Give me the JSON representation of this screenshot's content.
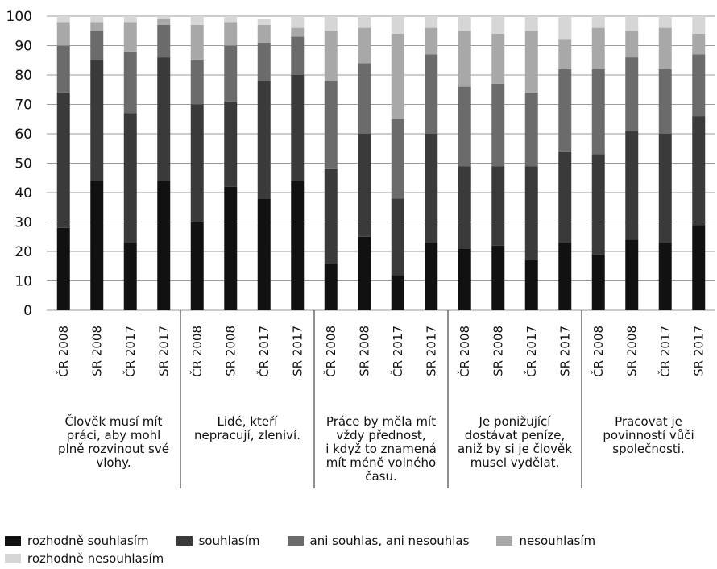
{
  "chart_data": {
    "type": "bar",
    "stacked": true,
    "ylim": [
      0,
      100
    ],
    "yticks": [
      0,
      10,
      20,
      30,
      40,
      50,
      60,
      70,
      80,
      90,
      100
    ],
    "grid": true,
    "legend_position": "bottom",
    "categories": [
      "ČR 2008",
      "SR 2008",
      "ČR 2017",
      "SR 2017",
      "ČR 2008",
      "SR 2008",
      "ČR 2017",
      "SR 2017",
      "ČR 2008",
      "SR 2008",
      "ČR 2017",
      "SR 2017",
      "ČR 2008",
      "SR 2008",
      "ČR 2017",
      "SR 2017",
      "ČR 2008",
      "SR 2008",
      "ČR 2017",
      "SR 2017"
    ],
    "groups": [
      "Člověk musí mít práci, aby mohl plně rozvinout své vlohy.",
      "Lidé, kteří nepracují, zleniví.",
      "Práce by měla mít vždy přednost, i když to znamená mít méně volného času.",
      "Je ponižující dostávat peníze, aniž by si je člověk musel vydělat.",
      "Pracovat je povinností vůči společnosti."
    ],
    "series": [
      {
        "name": "rozhodně souhlasím",
        "color": "#111111",
        "values": [
          28,
          44,
          23,
          44,
          30,
          42,
          38,
          44,
          16,
          25,
          12,
          23,
          21,
          22,
          17,
          23,
          19,
          24,
          23,
          29
        ]
      },
      {
        "name": "souhlasím",
        "color": "#3a3a3a",
        "values": [
          46,
          41,
          44,
          42,
          40,
          29,
          40,
          36,
          32,
          35,
          26,
          37,
          28,
          27,
          32,
          31,
          34,
          37,
          37,
          37
        ]
      },
      {
        "name": "ani souhlas, ani nesouhlas",
        "color": "#6b6b6b",
        "values": [
          16,
          10,
          21,
          11,
          15,
          19,
          13,
          13,
          30,
          24,
          27,
          27,
          27,
          28,
          25,
          28,
          29,
          25,
          22,
          21
        ]
      },
      {
        "name": "nesouhlasím",
        "color": "#a8a8a8",
        "values": [
          8,
          3,
          10,
          2,
          12,
          8,
          6,
          3,
          17,
          12,
          29,
          9,
          19,
          17,
          21,
          10,
          14,
          9,
          14,
          7
        ]
      },
      {
        "name": "rozhodně nesouhlasím",
        "color": "#d6d6d6",
        "values": [
          2,
          2,
          2,
          1,
          3,
          2,
          2,
          4,
          5,
          4,
          6,
          4,
          5,
          6,
          5,
          8,
          4,
          5,
          4,
          6
        ]
      }
    ]
  }
}
